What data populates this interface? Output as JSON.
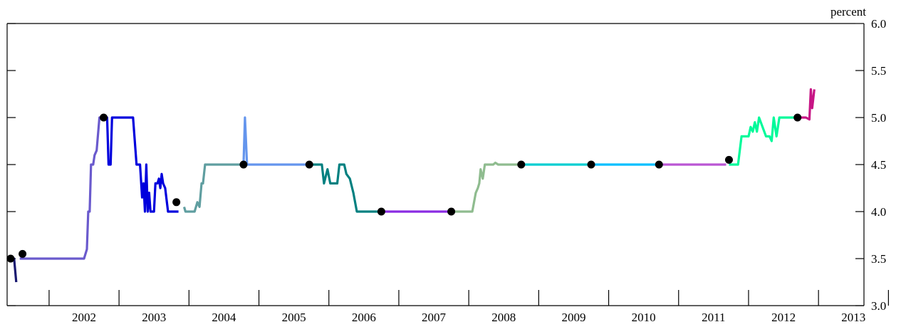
{
  "chart_data": {
    "type": "line",
    "title": "",
    "xlabel": "",
    "ylabel": "percent",
    "xlim": [
      2001.4,
      2013.65
    ],
    "ylim": [
      3.0,
      6.0
    ],
    "y_axis_side": "right",
    "y_ticks": [
      "3.0",
      "3.5",
      "4.0",
      "4.5",
      "5.0",
      "5.5",
      "6.0"
    ],
    "x_tick_labels": [
      "2002",
      "2003",
      "2004",
      "2005",
      "2006",
      "2007",
      "2008",
      "2009",
      "2010",
      "2011",
      "2012",
      "2013"
    ],
    "grid": false,
    "legend": "none",
    "series": [
      {
        "color": "#191970",
        "points": [
          [
            2001.42,
            3.5
          ],
          [
            2001.5,
            3.5
          ],
          [
            2001.53,
            3.25
          ]
        ]
      },
      {
        "color": "#6a5acd",
        "points": [
          [
            2001.58,
            3.5
          ],
          [
            2001.72,
            3.5
          ],
          [
            2002.2,
            3.5
          ],
          [
            2002.5,
            3.5
          ],
          [
            2002.54,
            3.6
          ],
          [
            2002.56,
            4.0
          ],
          [
            2002.58,
            4.0
          ],
          [
            2002.6,
            4.5
          ],
          [
            2002.63,
            4.5
          ],
          [
            2002.65,
            4.6
          ],
          [
            2002.68,
            4.65
          ],
          [
            2002.72,
            5.0
          ],
          [
            2002.78,
            5.0
          ]
        ]
      },
      {
        "color": "#0000dd",
        "points": [
          [
            2002.78,
            5.0
          ],
          [
            2002.83,
            5.0
          ],
          [
            2002.85,
            4.5
          ],
          [
            2002.88,
            4.5
          ],
          [
            2002.9,
            5.0
          ],
          [
            2002.95,
            5.0
          ],
          [
            2003.2,
            5.0
          ],
          [
            2003.25,
            4.5
          ],
          [
            2003.3,
            4.5
          ],
          [
            2003.33,
            4.15
          ],
          [
            2003.35,
            4.3
          ],
          [
            2003.37,
            4.0
          ],
          [
            2003.39,
            4.5
          ],
          [
            2003.41,
            4.0
          ],
          [
            2003.43,
            4.2
          ],
          [
            2003.45,
            4.0
          ],
          [
            2003.5,
            4.0
          ],
          [
            2003.52,
            4.3
          ],
          [
            2003.55,
            4.3
          ],
          [
            2003.57,
            4.35
          ],
          [
            2003.59,
            4.25
          ],
          [
            2003.61,
            4.4
          ],
          [
            2003.63,
            4.3
          ],
          [
            2003.66,
            4.25
          ],
          [
            2003.7,
            4.0
          ],
          [
            2003.85,
            4.0
          ]
        ]
      },
      {
        "color": "#5f9ea0",
        "points": [
          [
            2003.93,
            4.05
          ],
          [
            2003.95,
            4.0
          ],
          [
            2004.08,
            4.0
          ],
          [
            2004.12,
            4.1
          ],
          [
            2004.15,
            4.05
          ],
          [
            2004.18,
            4.3
          ],
          [
            2004.2,
            4.3
          ],
          [
            2004.23,
            4.5
          ],
          [
            2004.4,
            4.5
          ],
          [
            2004.78,
            4.5
          ]
        ]
      },
      {
        "color": "#6495ed",
        "points": [
          [
            2004.78,
            4.5
          ],
          [
            2004.8,
            5.0
          ],
          [
            2004.83,
            4.5
          ],
          [
            2005.2,
            4.5
          ],
          [
            2005.72,
            4.5
          ]
        ]
      },
      {
        "color": "#008080",
        "points": [
          [
            2005.72,
            4.5
          ],
          [
            2005.9,
            4.5
          ],
          [
            2005.93,
            4.3
          ],
          [
            2005.98,
            4.45
          ],
          [
            2006.02,
            4.3
          ],
          [
            2006.12,
            4.3
          ],
          [
            2006.15,
            4.5
          ],
          [
            2006.22,
            4.5
          ],
          [
            2006.25,
            4.4
          ],
          [
            2006.3,
            4.35
          ],
          [
            2006.35,
            4.2
          ],
          [
            2006.4,
            4.0
          ],
          [
            2006.75,
            4.0
          ]
        ]
      },
      {
        "color": "#8a2be2",
        "points": [
          [
            2006.75,
            4.0
          ],
          [
            2007.2,
            4.0
          ],
          [
            2007.75,
            4.0
          ]
        ]
      },
      {
        "color": "#8fbc8f",
        "points": [
          [
            2007.75,
            4.0
          ],
          [
            2008.05,
            4.0
          ],
          [
            2008.1,
            4.2
          ],
          [
            2008.13,
            4.25
          ],
          [
            2008.15,
            4.3
          ],
          [
            2008.17,
            4.45
          ],
          [
            2008.2,
            4.35
          ],
          [
            2008.23,
            4.5
          ],
          [
            2008.35,
            4.5
          ],
          [
            2008.38,
            4.52
          ],
          [
            2008.42,
            4.5
          ],
          [
            2008.75,
            4.5
          ]
        ]
      },
      {
        "color": "#00ced1",
        "points": [
          [
            2008.75,
            4.5
          ],
          [
            2009.2,
            4.5
          ],
          [
            2009.75,
            4.5
          ]
        ]
      },
      {
        "color": "#00bfff",
        "points": [
          [
            2009.75,
            4.5
          ],
          [
            2010.2,
            4.5
          ],
          [
            2010.72,
            4.5
          ]
        ]
      },
      {
        "color": "#ba55d3",
        "points": [
          [
            2010.72,
            4.5
          ],
          [
            2011.2,
            4.5
          ],
          [
            2011.68,
            4.5
          ]
        ]
      },
      {
        "color": "#00fa9a",
        "points": [
          [
            2011.72,
            4.5
          ],
          [
            2011.85,
            4.5
          ],
          [
            2011.9,
            4.8
          ],
          [
            2012.0,
            4.8
          ],
          [
            2012.03,
            4.9
          ],
          [
            2012.06,
            4.85
          ],
          [
            2012.09,
            4.95
          ],
          [
            2012.12,
            4.85
          ],
          [
            2012.15,
            5.0
          ],
          [
            2012.2,
            4.9
          ],
          [
            2012.25,
            4.8
          ],
          [
            2012.3,
            4.8
          ],
          [
            2012.33,
            4.75
          ],
          [
            2012.36,
            5.0
          ],
          [
            2012.4,
            4.8
          ],
          [
            2012.44,
            5.0
          ],
          [
            2012.55,
            5.0
          ],
          [
            2012.7,
            5.0
          ]
        ]
      },
      {
        "color": "#c71585",
        "points": [
          [
            2012.7,
            5.0
          ],
          [
            2012.82,
            5.0
          ],
          [
            2012.87,
            4.98
          ],
          [
            2012.89,
            5.3
          ],
          [
            2012.91,
            5.1
          ],
          [
            2012.94,
            5.3
          ]
        ]
      }
    ],
    "markers": [
      [
        2001.45,
        3.5
      ],
      [
        2001.62,
        3.55
      ],
      [
        2002.78,
        5.0
      ],
      [
        2003.82,
        4.1
      ],
      [
        2004.78,
        4.5
      ],
      [
        2005.72,
        4.5
      ],
      [
        2006.75,
        4.0
      ],
      [
        2007.75,
        4.0
      ],
      [
        2008.75,
        4.5
      ],
      [
        2009.75,
        4.5
      ],
      [
        2010.72,
        4.5
      ],
      [
        2011.72,
        4.55
      ],
      [
        2012.7,
        5.0
      ]
    ]
  }
}
